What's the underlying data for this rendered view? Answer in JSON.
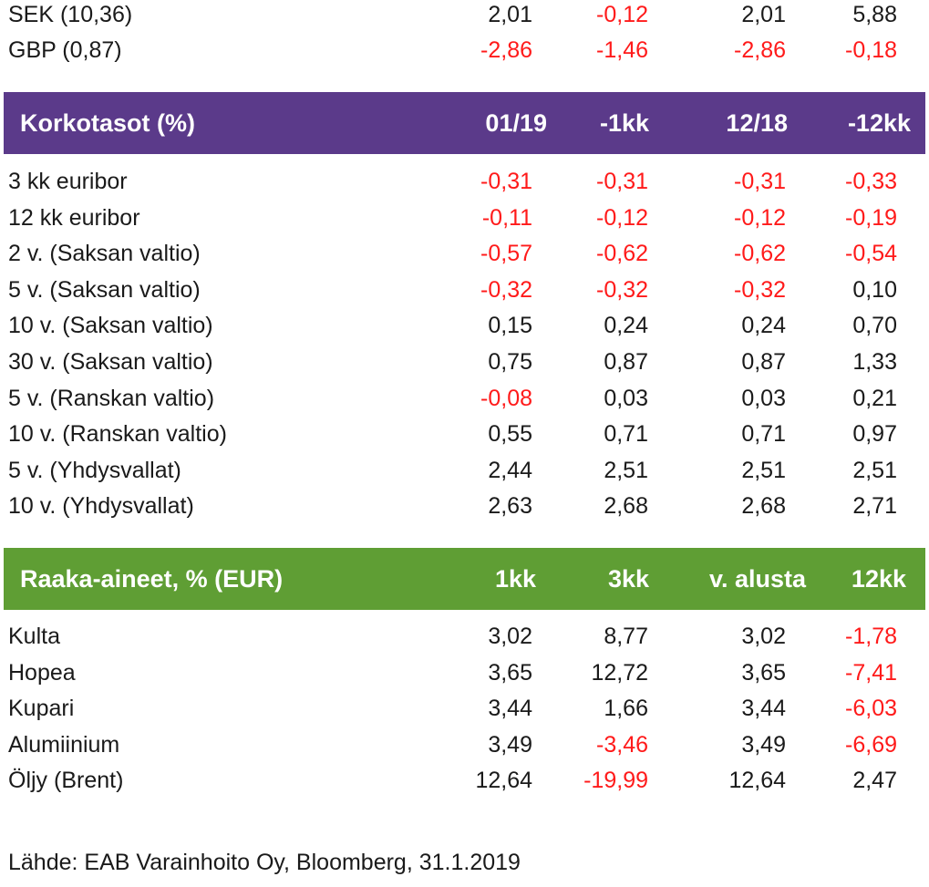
{
  "currencies": {
    "rows": [
      {
        "label": "SEK (10,36)",
        "v": [
          "2,01",
          "-0,12",
          "2,01",
          "5,88"
        ],
        "neg": [
          false,
          true,
          false,
          false
        ]
      },
      {
        "label": "GBP (0,87)",
        "v": [
          "-2,86",
          "-1,46",
          "-2,86",
          "-0,18"
        ],
        "neg": [
          true,
          true,
          true,
          true
        ]
      }
    ]
  },
  "rates": {
    "title": "Korkotasot (%)",
    "headers": [
      "01/19",
      "-1kk",
      "12/18",
      "-12kk"
    ],
    "color": "#5b3a8a",
    "rows": [
      {
        "label": "3 kk euribor",
        "v": [
          "-0,31",
          "-0,31",
          "-0,31",
          "-0,33"
        ],
        "neg": [
          true,
          true,
          true,
          true
        ]
      },
      {
        "label": "12 kk euribor",
        "v": [
          "-0,11",
          "-0,12",
          "-0,12",
          "-0,19"
        ],
        "neg": [
          true,
          true,
          true,
          true
        ]
      },
      {
        "label": "2 v. (Saksan valtio)",
        "v": [
          "-0,57",
          "-0,62",
          "-0,62",
          "-0,54"
        ],
        "neg": [
          true,
          true,
          true,
          true
        ]
      },
      {
        "label": "5 v. (Saksan valtio)",
        "v": [
          "-0,32",
          "-0,32",
          "-0,32",
          "0,10"
        ],
        "neg": [
          true,
          true,
          true,
          false
        ]
      },
      {
        "label": "10 v. (Saksan valtio)",
        "v": [
          "0,15",
          "0,24",
          "0,24",
          "0,70"
        ],
        "neg": [
          false,
          false,
          false,
          false
        ]
      },
      {
        "label": "30 v. (Saksan valtio)",
        "v": [
          "0,75",
          "0,87",
          "0,87",
          "1,33"
        ],
        "neg": [
          false,
          false,
          false,
          false
        ]
      },
      {
        "label": "5 v. (Ranskan valtio)",
        "v": [
          "-0,08",
          "0,03",
          "0,03",
          "0,21"
        ],
        "neg": [
          true,
          false,
          false,
          false
        ]
      },
      {
        "label": "10 v. (Ranskan valtio)",
        "v": [
          "0,55",
          "0,71",
          "0,71",
          "0,97"
        ],
        "neg": [
          false,
          false,
          false,
          false
        ]
      },
      {
        "label": "5 v. (Yhdysvallat)",
        "v": [
          "2,44",
          "2,51",
          "2,51",
          "2,51"
        ],
        "neg": [
          false,
          false,
          false,
          false
        ]
      },
      {
        "label": "10 v. (Yhdysvallat)",
        "v": [
          "2,63",
          "2,68",
          "2,68",
          "2,71"
        ],
        "neg": [
          false,
          false,
          false,
          false
        ]
      }
    ]
  },
  "commodities": {
    "title": "Raaka-aineet, % (EUR)",
    "headers": [
      "1kk",
      "3kk",
      "v. alusta",
      "12kk"
    ],
    "color": "#5f9e34",
    "rows": [
      {
        "label": "Kulta",
        "v": [
          "3,02",
          "8,77",
          "3,02",
          "-1,78"
        ],
        "neg": [
          false,
          false,
          false,
          true
        ]
      },
      {
        "label": "Hopea",
        "v": [
          "3,65",
          "12,72",
          "3,65",
          "-7,41"
        ],
        "neg": [
          false,
          false,
          false,
          true
        ]
      },
      {
        "label": "Kupari",
        "v": [
          "3,44",
          "1,66",
          "3,44",
          "-6,03"
        ],
        "neg": [
          false,
          false,
          false,
          true
        ]
      },
      {
        "label": "Alumiinium",
        "v": [
          "3,49",
          "-3,46",
          "3,49",
          "-6,69"
        ],
        "neg": [
          false,
          true,
          false,
          true
        ]
      },
      {
        "label": "Öljy (Brent)",
        "v": [
          "12,64",
          "-19,99",
          "12,64",
          "2,47"
        ],
        "neg": [
          false,
          true,
          false,
          false
        ]
      }
    ]
  },
  "source": "Lähde: EAB Varainhoito Oy, Bloomberg, 31.1.2019",
  "colors": {
    "negative": "#ff1a1a",
    "text": "#1a1a1a"
  }
}
